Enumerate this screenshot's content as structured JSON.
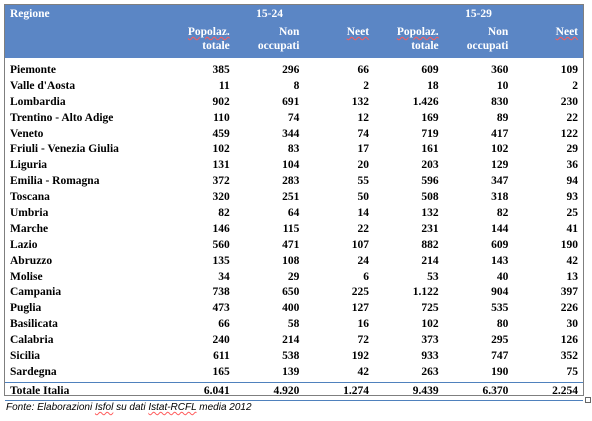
{
  "header": {
    "regione": "Regione",
    "group1": "15-24",
    "group2": "15-29",
    "col_pop_line1": "Popolaz.",
    "col_pop_line2": "totale",
    "col_non_line1": "Non",
    "col_non_line2": "occupati",
    "col_neet": "Neet"
  },
  "rows": [
    {
      "regione": "Piemonte",
      "v": [
        "385",
        "296",
        "66",
        "609",
        "360",
        "109"
      ]
    },
    {
      "regione": "Valle d'Aosta",
      "v": [
        "11",
        "8",
        "2",
        "18",
        "10",
        "2"
      ]
    },
    {
      "regione": "Lombardia",
      "v": [
        "902",
        "691",
        "132",
        "1.426",
        "830",
        "230"
      ]
    },
    {
      "regione": "Trentino - Alto Adige",
      "v": [
        "110",
        "74",
        "12",
        "169",
        "89",
        "22"
      ]
    },
    {
      "regione": "Veneto",
      "v": [
        "459",
        "344",
        "74",
        "719",
        "417",
        "122"
      ]
    },
    {
      "regione": "Friuli - Venezia Giulia",
      "v": [
        "102",
        "83",
        "17",
        "161",
        "102",
        "29"
      ]
    },
    {
      "regione": "Liguria",
      "v": [
        "131",
        "104",
        "20",
        "203",
        "129",
        "36"
      ]
    },
    {
      "regione": "Emilia - Romagna",
      "v": [
        "372",
        "283",
        "55",
        "596",
        "347",
        "94"
      ]
    },
    {
      "regione": "Toscana",
      "v": [
        "320",
        "251",
        "50",
        "508",
        "318",
        "93"
      ]
    },
    {
      "regione": "Umbria",
      "v": [
        "82",
        "64",
        "14",
        "132",
        "82",
        "25"
      ]
    },
    {
      "regione": "Marche",
      "v": [
        "146",
        "115",
        "22",
        "231",
        "144",
        "41"
      ]
    },
    {
      "regione": "Lazio",
      "v": [
        "560",
        "471",
        "107",
        "882",
        "609",
        "190"
      ]
    },
    {
      "regione": "Abruzzo",
      "v": [
        "135",
        "108",
        "24",
        "214",
        "143",
        "42"
      ]
    },
    {
      "regione": "Molise",
      "v": [
        "34",
        "29",
        "6",
        "53",
        "40",
        "13"
      ]
    },
    {
      "regione": "Campania",
      "v": [
        "738",
        "650",
        "225",
        "1.122",
        "904",
        "397"
      ]
    },
    {
      "regione": "Puglia",
      "v": [
        "473",
        "400",
        "127",
        "725",
        "535",
        "226"
      ]
    },
    {
      "regione": "Basilicata",
      "v": [
        "66",
        "58",
        "16",
        "102",
        "80",
        "30"
      ]
    },
    {
      "regione": "Calabria",
      "v": [
        "240",
        "214",
        "72",
        "373",
        "295",
        "126"
      ]
    },
    {
      "regione": "Sicilia",
      "v": [
        "611",
        "538",
        "192",
        "933",
        "747",
        "352"
      ]
    },
    {
      "regione": "Sardegna",
      "v": [
        "165",
        "139",
        "42",
        "263",
        "190",
        "75"
      ]
    }
  ],
  "total": {
    "regione": "Totale Italia",
    "v": [
      "6.041",
      "4.920",
      "1.274",
      "9.439",
      "6.370",
      "2.254"
    ]
  },
  "source": "Fonte: Elaborazioni Isfol su dati Istat-RCFL media 2012",
  "colors": {
    "header_bg": "#5b86c5",
    "header_text": "#ffffff",
    "rule": "#4f81bd"
  }
}
